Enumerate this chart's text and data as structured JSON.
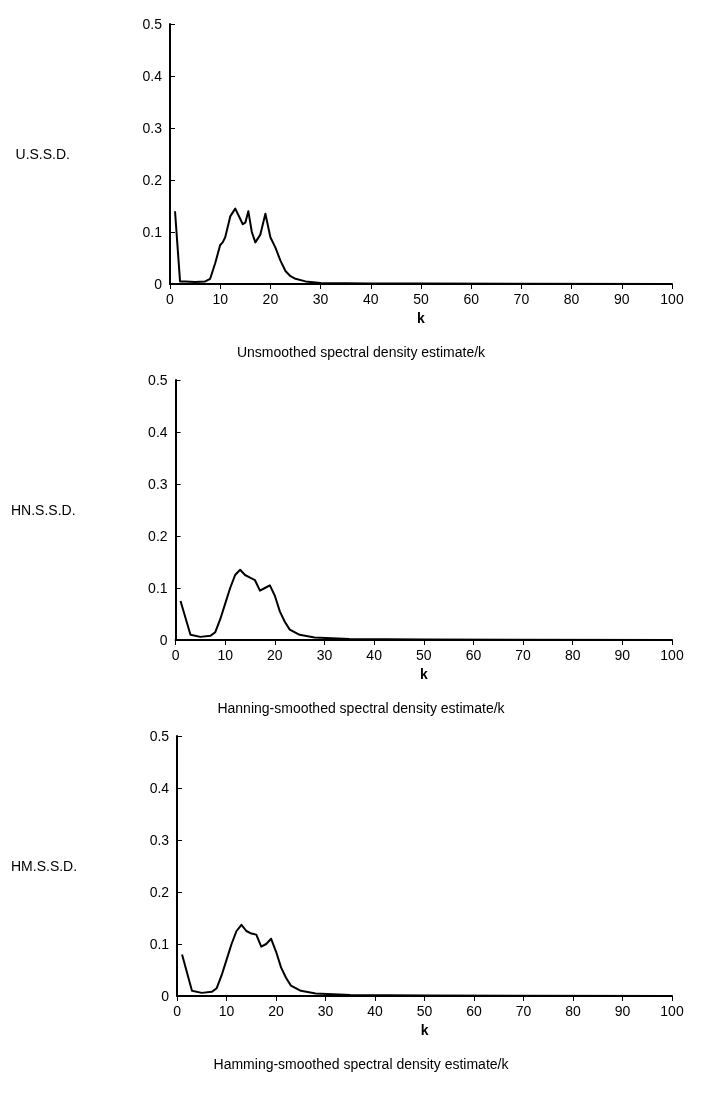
{
  "chart_data": [
    {
      "type": "line",
      "title": "Unsmoothed spectral density estimate/k",
      "xlabel": "k",
      "ylabel": "U.S.S.D.",
      "xlim": [
        0,
        100
      ],
      "xticks": [
        0,
        10,
        20,
        30,
        40,
        50,
        60,
        70,
        80,
        90,
        100
      ],
      "ylim": [
        0,
        0.5
      ],
      "yticks": [
        0,
        0.1,
        0.2,
        0.3,
        0.4,
        0.5
      ],
      "marker": "none",
      "line_style": "solid",
      "series": [
        {
          "color": "#000000",
          "x": [
            1,
            2,
            3,
            5,
            7,
            8,
            9,
            10,
            10.5,
            11,
            12,
            13,
            14,
            14.5,
            15,
            15.6,
            16.3,
            17,
            18,
            19,
            20,
            21,
            22,
            23,
            24,
            25,
            27,
            30,
            40,
            50,
            100
          ],
          "values": [
            0.14,
            0.005,
            0.005,
            0.004,
            0.005,
            0.01,
            0.04,
            0.075,
            0.08,
            0.09,
            0.13,
            0.145,
            0.125,
            0.115,
            0.118,
            0.14,
            0.1,
            0.08,
            0.095,
            0.135,
            0.09,
            0.07,
            0.045,
            0.025,
            0.015,
            0.01,
            0.005,
            0.002,
            0.001,
            0.001,
            0
          ]
        }
      ]
    },
    {
      "type": "line",
      "title": "Hanning-smoothed spectral density estimate/k",
      "xlabel": "k",
      "ylabel": "HN.S.S.D.",
      "xlim": [
        0,
        100
      ],
      "xticks": [
        0,
        10,
        20,
        30,
        40,
        50,
        60,
        70,
        80,
        90,
        100
      ],
      "ylim": [
        0,
        0.5
      ],
      "yticks": [
        0,
        0.1,
        0.2,
        0.3,
        0.4,
        0.5
      ],
      "marker": "none",
      "line_style": "solid",
      "series": [
        {
          "color": "#000000",
          "x": [
            1,
            3,
            5,
            7,
            8,
            9,
            10,
            11,
            12,
            13,
            14,
            15,
            16,
            17,
            18,
            19,
            20,
            21,
            22,
            23,
            25,
            28,
            35,
            50,
            100
          ],
          "values": [
            0.075,
            0.01,
            0.006,
            0.008,
            0.015,
            0.04,
            0.07,
            0.1,
            0.125,
            0.135,
            0.125,
            0.12,
            0.115,
            0.095,
            0.1,
            0.105,
            0.085,
            0.055,
            0.035,
            0.02,
            0.01,
            0.005,
            0.002,
            0.001,
            0
          ]
        }
      ]
    },
    {
      "type": "line",
      "title": "Hamming-smoothed spectral density estimate/k",
      "xlabel": "k",
      "ylabel": "HM.S.S.D.",
      "xlim": [
        0,
        100
      ],
      "xticks": [
        0,
        10,
        20,
        30,
        40,
        50,
        60,
        70,
        80,
        90,
        100
      ],
      "ylim": [
        0,
        0.5
      ],
      "yticks": [
        0,
        0.1,
        0.2,
        0.3,
        0.4,
        0.5
      ],
      "marker": "none",
      "line_style": "solid",
      "series": [
        {
          "color": "#000000",
          "x": [
            1,
            3,
            5,
            7,
            8,
            9,
            10,
            11,
            12,
            13,
            14,
            15,
            16,
            17,
            18,
            19,
            20,
            21,
            22,
            23,
            25,
            28,
            35,
            50,
            100
          ],
          "values": [
            0.08,
            0.01,
            0.006,
            0.008,
            0.015,
            0.04,
            0.07,
            0.1,
            0.125,
            0.137,
            0.125,
            0.12,
            0.118,
            0.095,
            0.1,
            0.11,
            0.085,
            0.055,
            0.035,
            0.02,
            0.01,
            0.005,
            0.002,
            0.001,
            0
          ]
        }
      ]
    }
  ]
}
